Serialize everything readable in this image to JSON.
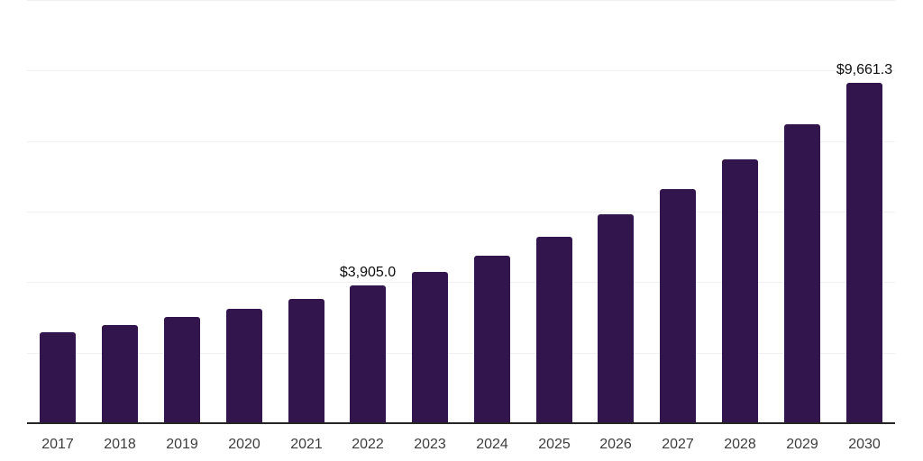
{
  "chart_data": {
    "type": "bar",
    "title": "",
    "xlabel": "",
    "ylabel": "",
    "categories": [
      "2017",
      "2018",
      "2019",
      "2020",
      "2021",
      "2022",
      "2023",
      "2024",
      "2025",
      "2026",
      "2027",
      "2028",
      "2029",
      "2030"
    ],
    "values": [
      2570,
      2780,
      3000,
      3255,
      3535,
      3905,
      4290,
      4750,
      5285,
      5925,
      6640,
      7485,
      8475,
      9661.3
    ],
    "value_labels": [
      {
        "category": "2022",
        "text": "$3,905.0"
      },
      {
        "category": "2030",
        "text": "$9,661.3"
      }
    ],
    "ylim": [
      0,
      12000
    ],
    "gridline_step": 2000,
    "grid": "horizontal-only",
    "y_axis_tick_labels_visible": false,
    "legend_position": "none",
    "colors": {
      "bar": "#33154d",
      "gridline": "#f1f1f1",
      "baseline": "#262626",
      "value_label": "#0d0d0d",
      "axis_label": "#3d3d3d",
      "background": "#ffffff"
    }
  }
}
